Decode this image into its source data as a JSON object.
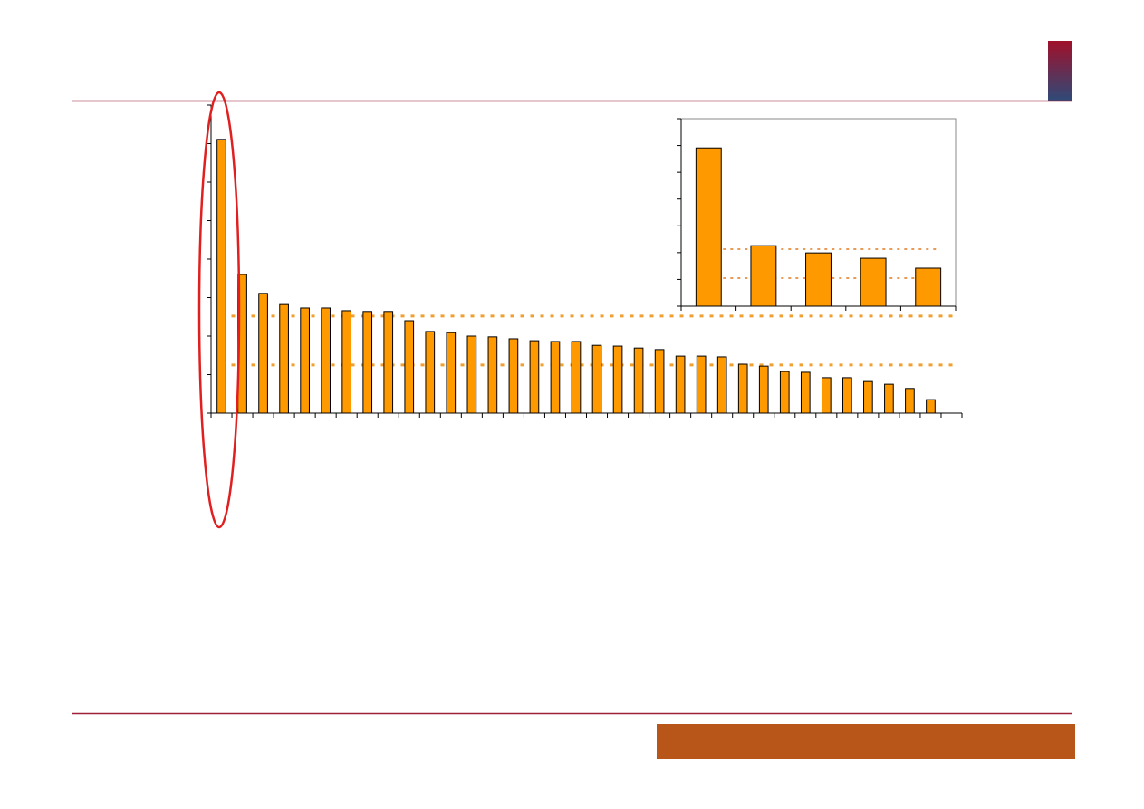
{
  "chart_data": [
    {
      "type": "bar",
      "categories": [
        null,
        null,
        null,
        null,
        null,
        null,
        null,
        null,
        null,
        null,
        null,
        null,
        null,
        null,
        null,
        null,
        null,
        null,
        null,
        null,
        null,
        null,
        null,
        null,
        null,
        null,
        null,
        null,
        null,
        null,
        null,
        null,
        null,
        null,
        null,
        null
      ],
      "values": [
        7.11,
        3.6,
        3.11,
        2.82,
        2.73,
        2.73,
        2.66,
        2.64,
        2.64,
        2.4,
        2.12,
        2.09,
        2.0,
        1.98,
        1.93,
        1.88,
        1.86,
        1.86,
        1.76,
        1.74,
        1.69,
        1.65,
        1.48,
        1.48,
        1.46,
        1.27,
        1.22,
        1.08,
        1.06,
        0.92,
        0.92,
        0.82,
        0.75,
        0.64,
        0.35,
        null
      ],
      "color": "#ff9900",
      "ylim": [
        0,
        8
      ],
      "yticks": [
        0,
        1,
        2,
        3,
        4,
        5,
        6,
        7,
        8
      ],
      "reference_lines": [
        2.52,
        1.25
      ],
      "reference_color": "#f0a030"
    },
    {
      "type": "bar",
      "categories": [
        null,
        null,
        null,
        null,
        null
      ],
      "values": [
        5.91,
        2.26,
        1.99,
        1.79,
        1.42
      ],
      "color": "#ff9900",
      "ylim": [
        0,
        7
      ],
      "yticks": [
        0,
        1,
        2,
        3,
        4,
        5,
        6,
        7
      ],
      "reference_lines": [
        2.13,
        1.05
      ],
      "reference_color": "#e07a20"
    }
  ]
}
